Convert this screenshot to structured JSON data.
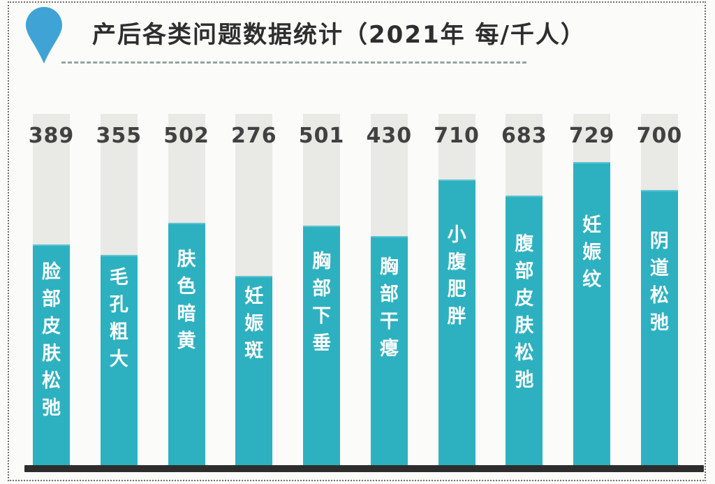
{
  "title": {
    "text": "产后各类问题数据统计（2021年  每/千人）"
  },
  "colors": {
    "bar": "#2db1c0",
    "track": "#e9e9e6",
    "drop": "#3fa4d5",
    "baseline": "#2d2d2d",
    "number": "#414141",
    "title_text": "#2e2e2e",
    "divider": "#6e8888",
    "label_text": "#fdfdfd"
  },
  "chart_data": {
    "type": "bar",
    "title": "产后各类问题数据统计（2021年 每/千人）",
    "unit_note": "每/千人",
    "year": "2021",
    "categories": [
      "脸部皮肤松弛",
      "毛孔粗大",
      "肤色暗黄",
      "妊娠斑",
      "胸部下垂",
      "胸部干瘪",
      "小腹肥胖",
      "腹部皮肤松弛",
      "妊娠纹",
      "阴道松弛"
    ],
    "values": [
      389,
      355,
      502,
      276,
      501,
      430,
      710,
      683,
      729,
      700
    ],
    "bar_height_pct": [
      63.0,
      60.0,
      69.1,
      54.1,
      68.3,
      65.3,
      81.4,
      76.8,
      86.3,
      78.4
    ],
    "xlabel": "",
    "ylabel": "",
    "grid": false,
    "legend": false,
    "orientation": "vertical",
    "value_label_position": "above-bar-on-track"
  }
}
